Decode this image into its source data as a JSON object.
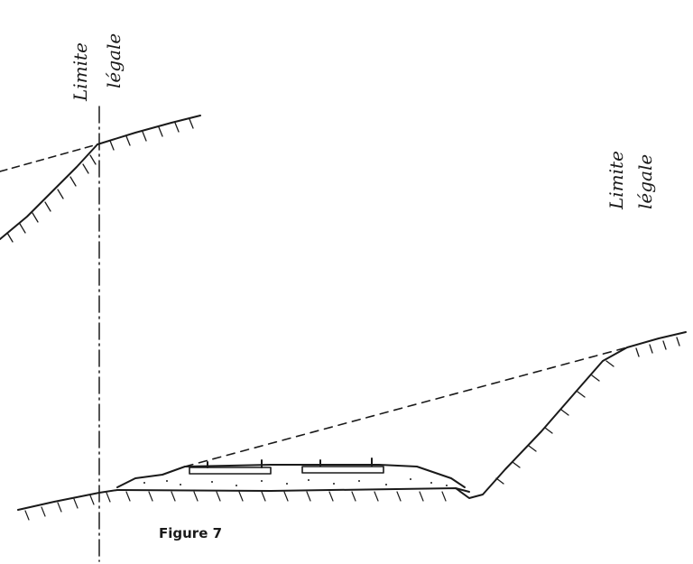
{
  "labels": {
    "left_limit_line1": "Limite",
    "left_limit_line2": "légale",
    "right_limit_line1": "Limite",
    "right_limit_line2": "légale",
    "caption": "Figure 7"
  },
  "colors": {
    "ink": "#1a1a1a",
    "paper": "#ffffff"
  }
}
